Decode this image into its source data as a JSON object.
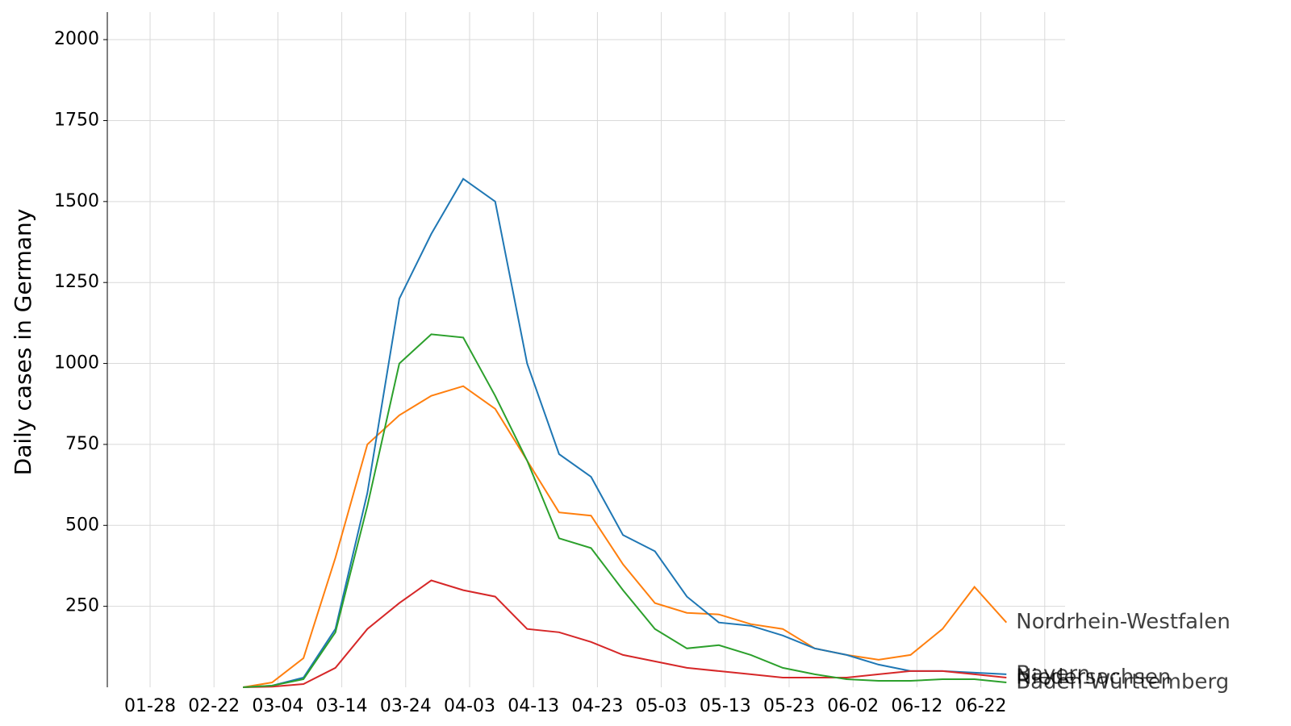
{
  "chart_data": {
    "type": "line",
    "ylabel": "Daily cases in Germany",
    "x": [
      "02-27",
      "03-03",
      "03-08",
      "03-13",
      "03-18",
      "03-23",
      "03-28",
      "04-02",
      "04-07",
      "04-12",
      "04-17",
      "04-22",
      "04-27",
      "05-02",
      "05-07",
      "05-12",
      "05-17",
      "05-22",
      "05-27",
      "06-01",
      "06-06",
      "06-11",
      "06-16",
      "06-21",
      "06-26"
    ],
    "xticks": [
      "01-28",
      "02-22",
      "03-04",
      "03-14",
      "03-24",
      "04-03",
      "04-13",
      "04-23",
      "05-03",
      "05-13",
      "05-23",
      "06-02",
      "06-12",
      "06-22",
      null
    ],
    "ylim": [
      0,
      2085
    ],
    "yticks": [
      250,
      500,
      750,
      1000,
      1250,
      1500,
      1750,
      2000
    ],
    "grid": true,
    "series": [
      {
        "name": "Nordrhein-Westfalen",
        "color": "#ff7f0e",
        "values": [
          0,
          15,
          90,
          400,
          750,
          840,
          900,
          930,
          860,
          700,
          540,
          530,
          380,
          260,
          230,
          225,
          195,
          180,
          120,
          100,
          85,
          100,
          180,
          310,
          200
        ]
      },
      {
        "name": "Bayern",
        "color": "#1f77b4",
        "values": [
          0,
          5,
          30,
          180,
          600,
          1200,
          1400,
          1570,
          1500,
          1000,
          720,
          650,
          470,
          420,
          280,
          200,
          190,
          160,
          120,
          100,
          70,
          50,
          50,
          45,
          40
        ]
      },
      {
        "name": "Niedersachsen",
        "color": "#d62728",
        "values": [
          0,
          2,
          10,
          60,
          180,
          260,
          330,
          300,
          280,
          180,
          170,
          140,
          100,
          80,
          60,
          50,
          40,
          30,
          30,
          30,
          40,
          50,
          50,
          40,
          30
        ]
      },
      {
        "name": "Baden-Württemberg",
        "color": "#2ca02c",
        "values": [
          0,
          5,
          25,
          170,
          560,
          1000,
          1090,
          1080,
          900,
          700,
          460,
          430,
          300,
          180,
          120,
          130,
          100,
          60,
          40,
          25,
          20,
          20,
          25,
          25,
          15
        ]
      }
    ]
  }
}
